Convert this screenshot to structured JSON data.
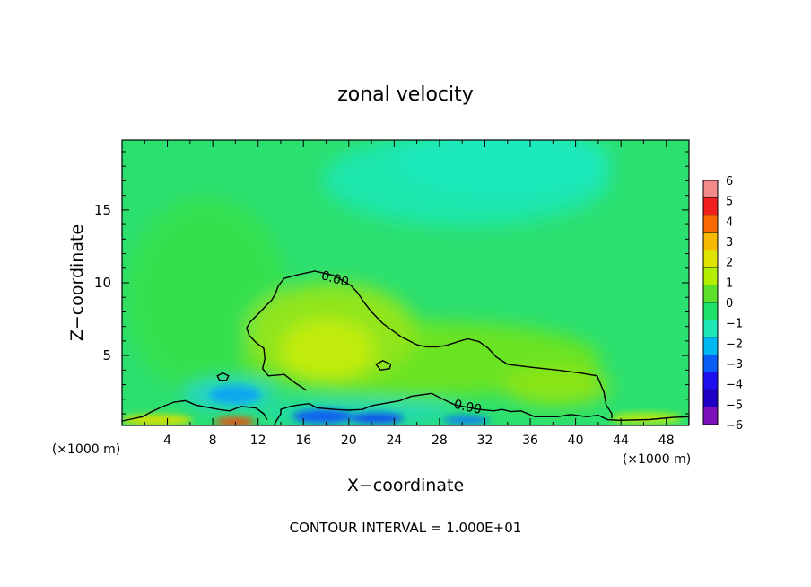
{
  "chart_data": {
    "type": "heatmap",
    "title": "zonal velocity",
    "xlabel": "X−coordinate",
    "ylabel": "Z−coordinate",
    "x_unit_left": "(×1000 m)",
    "x_unit_right": "(×1000 m)",
    "xlim": [
      0,
      50
    ],
    "ylim": [
      0.2,
      19.8
    ],
    "x_ticks": [
      4,
      8,
      12,
      16,
      20,
      24,
      28,
      32,
      36,
      40,
      44,
      48
    ],
    "x_tick_labels": [
      "4",
      "8",
      "12",
      "16",
      "20",
      "24",
      "28",
      "32",
      "36",
      "40",
      "44",
      "48"
    ],
    "y_ticks": [
      5,
      10,
      15
    ],
    "y_tick_labels": [
      "5",
      "10",
      "15"
    ],
    "footer": "CONTOUR INTERVAL = 1.000E+01",
    "contour_labels": [
      {
        "text": "0.00",
        "x": 18.8,
        "z": 10.3
      },
      {
        "text": "0.00",
        "x": 30.5,
        "z": 1.5
      }
    ],
    "zero_contour_main": [
      [
        12.8,
        0.6
      ],
      [
        12.5,
        1.0
      ],
      [
        11.8,
        1.4
      ],
      [
        10.5,
        1.5
      ],
      [
        9.5,
        1.2
      ],
      [
        8.5,
        1.3
      ],
      [
        6.5,
        1.6
      ],
      [
        5.6,
        1.9
      ],
      [
        4.6,
        1.8
      ],
      [
        3.6,
        1.5
      ],
      [
        2.5,
        1.1
      ],
      [
        1.8,
        0.8
      ],
      [
        0.6,
        0.6
      ],
      [
        0.0,
        0.5
      ]
    ],
    "zero_contour_region": [
      [
        13.4,
        0.2
      ],
      [
        13.6,
        0.5
      ],
      [
        14.0,
        1.0
      ],
      [
        14.0,
        1.3
      ],
      [
        14.8,
        1.5
      ],
      [
        15.5,
        1.6
      ],
      [
        16.5,
        1.7
      ],
      [
        17.2,
        1.4
      ],
      [
        18.8,
        1.3
      ],
      [
        20.0,
        1.25
      ],
      [
        21.2,
        1.3
      ],
      [
        22.0,
        1.55
      ],
      [
        24.5,
        1.9
      ],
      [
        25.5,
        2.2
      ],
      [
        27.3,
        2.4
      ],
      [
        28.3,
        2.0
      ],
      [
        29.4,
        1.6
      ],
      [
        30.4,
        1.45
      ],
      [
        31.5,
        1.3
      ],
      [
        32.8,
        1.2
      ],
      [
        33.5,
        1.3
      ],
      [
        34.3,
        1.15
      ],
      [
        35.2,
        1.2
      ],
      [
        36.4,
        0.8
      ],
      [
        38.4,
        0.8
      ],
      [
        39.6,
        0.95
      ],
      [
        41.0,
        0.8
      ],
      [
        42.0,
        0.9
      ],
      [
        42.8,
        0.6
      ],
      [
        43.8,
        0.55
      ],
      [
        46.5,
        0.6
      ],
      [
        48.6,
        0.75
      ],
      [
        50.0,
        0.8
      ],
      [
        50.0,
        0.2
      ]
    ],
    "zero_contour_upper": [
      [
        43.2,
        0.7
      ],
      [
        43.2,
        1.0
      ],
      [
        42.7,
        1.6
      ],
      [
        42.5,
        2.5
      ],
      [
        41.9,
        3.6
      ],
      [
        40.4,
        3.8
      ],
      [
        38.4,
        4.0
      ],
      [
        36.0,
        4.2
      ],
      [
        34.0,
        4.4
      ],
      [
        33.0,
        4.9
      ],
      [
        32.3,
        5.5
      ],
      [
        31.5,
        5.95
      ],
      [
        30.5,
        6.15
      ],
      [
        29.8,
        6.0
      ],
      [
        28.6,
        5.7
      ],
      [
        27.8,
        5.6
      ],
      [
        26.8,
        5.6
      ],
      [
        26.0,
        5.75
      ],
      [
        24.6,
        6.3
      ],
      [
        23.0,
        7.2
      ],
      [
        22.0,
        8.0
      ],
      [
        21.3,
        8.7
      ],
      [
        20.8,
        9.3
      ],
      [
        20.2,
        9.8
      ],
      [
        18.7,
        10.5
      ],
      [
        17.0,
        10.8
      ],
      [
        15.5,
        10.55
      ],
      [
        14.3,
        10.3
      ],
      [
        13.8,
        9.8
      ],
      [
        13.5,
        9.2
      ],
      [
        13.2,
        8.8
      ],
      [
        12.8,
        8.5
      ],
      [
        12.2,
        8.0
      ],
      [
        11.3,
        7.3
      ],
      [
        11.0,
        6.9
      ],
      [
        11.2,
        6.4
      ],
      [
        11.8,
        5.9
      ],
      [
        12.5,
        5.5
      ],
      [
        12.6,
        4.8
      ],
      [
        12.4,
        4.1
      ],
      [
        12.9,
        3.6
      ],
      [
        14.3,
        3.7
      ],
      [
        15.3,
        3.1
      ],
      [
        16.3,
        2.6
      ]
    ],
    "zero_contour_blobs": [
      [
        [
          8.4,
          3.6
        ],
        [
          8.9,
          3.8
        ],
        [
          9.4,
          3.6
        ],
        [
          9.2,
          3.3
        ],
        [
          8.6,
          3.3
        ],
        [
          8.4,
          3.6
        ]
      ],
      [
        [
          22.4,
          4.4
        ],
        [
          23.0,
          4.65
        ],
        [
          23.7,
          4.4
        ],
        [
          23.6,
          4.1
        ],
        [
          22.8,
          4.0
        ],
        [
          22.4,
          4.4
        ]
      ]
    ],
    "colorbar": {
      "levels": [
        "6",
        "5",
        "4",
        "3",
        "2",
        "1",
        "0",
        "−1",
        "−2",
        "−3",
        "−4",
        "−5",
        "−6"
      ],
      "colors": [
        "#f58a8a",
        "#f32020",
        "#f86a00",
        "#f7b800",
        "#e0e200",
        "#b4ef00",
        "#5ee02a",
        "#1fe06a",
        "#1ee6b4",
        "#00b8f0",
        "#0a5ef5",
        "#1f10f0",
        "#2000c4",
        "#7e10bb"
      ]
    }
  }
}
